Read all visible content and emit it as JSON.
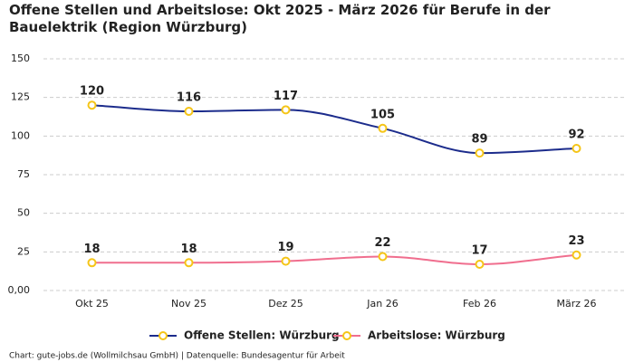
{
  "chart_data": {
    "type": "line",
    "title": "Offene Stellen und Arbeitslose: Okt 2025 - März 2026 für Berufe in der Bauelektrik (Region Würzburg)",
    "categories": [
      "Okt 25",
      "Nov 25",
      "Dez 25",
      "Jan 26",
      "Feb 26",
      "März 26"
    ],
    "series": [
      {
        "name": "Offene Stellen: Würzburg",
        "color": "#1c2c8c",
        "values": [
          120,
          116,
          117,
          105,
          89,
          92
        ]
      },
      {
        "name": "Arbeitslose: Würzburg",
        "color": "#f06e8e",
        "values": [
          18,
          18,
          19,
          22,
          17,
          23
        ]
      }
    ],
    "marker_color": "#f5c518",
    "ylim": [
      0,
      150
    ],
    "yticks": [
      {
        "value": 0,
        "label": "0,00"
      },
      25,
      50,
      75,
      100,
      125,
      150
    ],
    "grid": true,
    "legend": "bottom",
    "source": "Chart: gute-jobs.de (Wollmilchsau GmbH) | Datenquelle: Bundesagentur für Arbeit"
  }
}
